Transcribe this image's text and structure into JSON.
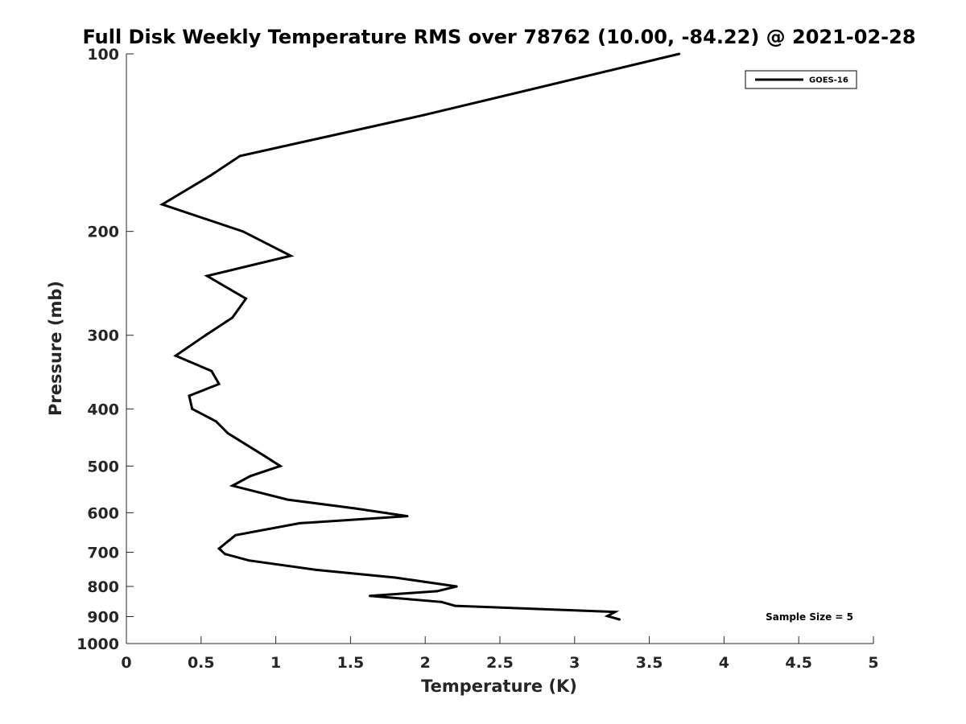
{
  "chart_data": {
    "type": "line",
    "title": "Full Disk Weekly Temperature RMS over 78762 (10.00, -84.22) @ 2021-02-28",
    "xlabel": "Temperature (K)",
    "ylabel": "Pressure (mb)",
    "xlim": [
      0,
      5
    ],
    "ylim": [
      100,
      1000
    ],
    "y_scale": "log",
    "y_reversed": true,
    "grid": false,
    "legend_position": "top-right",
    "x_ticks": [
      0,
      0.5,
      1,
      1.5,
      2,
      2.5,
      3,
      3.5,
      4,
      4.5,
      5
    ],
    "x_tick_labels": [
      "0",
      "0.5",
      "1",
      "1.5",
      "2",
      "2.5",
      "3",
      "3.5",
      "4",
      "4.5",
      "5"
    ],
    "y_ticks": [
      100,
      200,
      300,
      400,
      500,
      600,
      700,
      800,
      900,
      1000
    ],
    "y_tick_labels": [
      "100",
      "200",
      "300",
      "400",
      "500",
      "600",
      "700",
      "800",
      "900",
      "1000"
    ],
    "series": [
      {
        "name": "GOES-16",
        "color": "#000000",
        "x": [
          3.7,
          1.99,
          0.76,
          0.56,
          0.24,
          0.78,
          1.1,
          0.54,
          0.8,
          0.71,
          0.53,
          0.33,
          0.57,
          0.62,
          0.42,
          0.44,
          0.6,
          0.68,
          0.92,
          1.03,
          0.83,
          0.71,
          1.08,
          1.53,
          1.88,
          1.16,
          0.73,
          0.62,
          0.66,
          0.82,
          1.27,
          1.8,
          2.21,
          2.08,
          1.63,
          2.11,
          2.2,
          3.27,
          3.22,
          3.3
        ],
        "y": [
          100,
          127,
          149,
          161,
          180,
          200,
          220,
          238,
          260,
          280,
          300,
          325,
          345,
          363,
          380,
          400,
          420,
          440,
          480,
          500,
          520,
          540,
          570,
          590,
          608,
          625,
          655,
          690,
          705,
          723,
          750,
          773,
          800,
          815,
          830,
          850,
          863,
          884,
          898,
          910
        ]
      }
    ],
    "annotations": [
      "Sample Size = 5"
    ]
  }
}
